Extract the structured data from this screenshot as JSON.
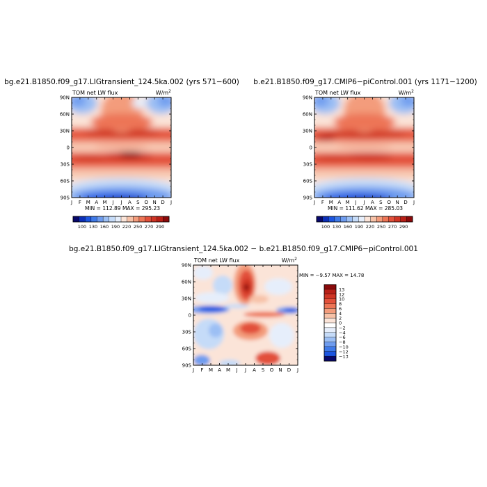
{
  "panels": [
    {
      "title": "bg.e21.B1850.f09_g17.LIGtransient_124.5ka.002 (yrs 571−600)",
      "label_left": "TOM net LW flux",
      "units_base": "W/m",
      "units_exp": "2",
      "minmax": "MIN = 112.89 MAX = 295.23"
    },
    {
      "title": "b.e21.B1850.f09_g17.CMIP6−piControl.001 (yrs 1171−1200)",
      "label_left": "TOM net LW flux",
      "units_base": "W/m",
      "units_exp": "2",
      "minmax": "MIN = 111.62 MAX = 285.03"
    },
    {
      "title": "bg.e21.B1850.f09_g17.LIGtransient_124.5ka.002 − b.e21.B1850.f09_g17.CMIP6−piControl.001",
      "label_left": "TOM net LW flux",
      "units_base": "W/m",
      "units_exp": "2",
      "minmax": "MIN =   −9.57 MAX =  14.78"
    }
  ],
  "colorbar_abs": {
    "labels": [
      "100",
      "130",
      "160",
      "190",
      "220",
      "250",
      "270",
      "290"
    ],
    "colors": [
      "#08086b",
      "#0c2fb8",
      "#1c55e0",
      "#3f7ae8",
      "#6e9cef",
      "#9cbff4",
      "#c5dbf8",
      "#e6eefb",
      "#fbe4d8",
      "#f7c2a8",
      "#f39c7c",
      "#ed7556",
      "#e2503a",
      "#cf3424",
      "#b81f17",
      "#8a0a0b"
    ]
  },
  "colorbar_diff": {
    "labels": [
      "13",
      "12",
      "10",
      "8",
      "6",
      "4",
      "2",
      "0",
      "−2",
      "−4",
      "−6",
      "−8",
      "−10",
      "−12",
      "−13"
    ],
    "colors": [
      "#8a0a0b",
      "#b81f17",
      "#cf3424",
      "#e2503a",
      "#ed7556",
      "#f39c7c",
      "#f7c2a8",
      "#fbe4d8",
      "#ffffff",
      "#e6eefb",
      "#c5dbf8",
      "#9cbff4",
      "#6e9cef",
      "#3f7ae8",
      "#1c55e0",
      "#08086b"
    ]
  },
  "chart_data": [
    {
      "type": "heatmap",
      "title": "bg.e21.B1850.f09_g17.LIGtransient_124.5ka.002 (yrs 571−600)",
      "variable": "TOM net LW flux",
      "units": "W/m2",
      "x_ticks": [
        "J",
        "F",
        "M",
        "A",
        "M",
        "J",
        "J",
        "A",
        "S",
        "O",
        "N",
        "D",
        "J"
      ],
      "y_ticks": [
        "90N",
        "60N",
        "30N",
        "0",
        "30S",
        "60S",
        "90S"
      ],
      "min": 112.89,
      "max": 295.23
    },
    {
      "type": "heatmap",
      "title": "b.e21.B1850.f09_g17.CMIP6−piControl.001 (yrs 1171−1200)",
      "variable": "TOM net LW flux",
      "units": "W/m2",
      "x_ticks": [
        "J",
        "F",
        "M",
        "A",
        "M",
        "J",
        "J",
        "A",
        "S",
        "O",
        "N",
        "D",
        "J"
      ],
      "y_ticks": [
        "90N",
        "60N",
        "30N",
        "0",
        "30S",
        "60S",
        "90S"
      ],
      "min": 111.62,
      "max": 285.03
    },
    {
      "type": "heatmap",
      "title": "bg.e21.B1850.f09_g17.LIGtransient_124.5ka.002 − b.e21.B1850.f09_g17.CMIP6−piControl.001",
      "variable": "TOM net LW flux",
      "units": "W/m2",
      "x_ticks": [
        "J",
        "F",
        "M",
        "A",
        "M",
        "J",
        "J",
        "A",
        "S",
        "O",
        "N",
        "D",
        "J"
      ],
      "y_ticks": [
        "90N",
        "60N",
        "30N",
        "0",
        "30S",
        "60S",
        "90S"
      ],
      "min": -9.57,
      "max": 14.78
    }
  ]
}
